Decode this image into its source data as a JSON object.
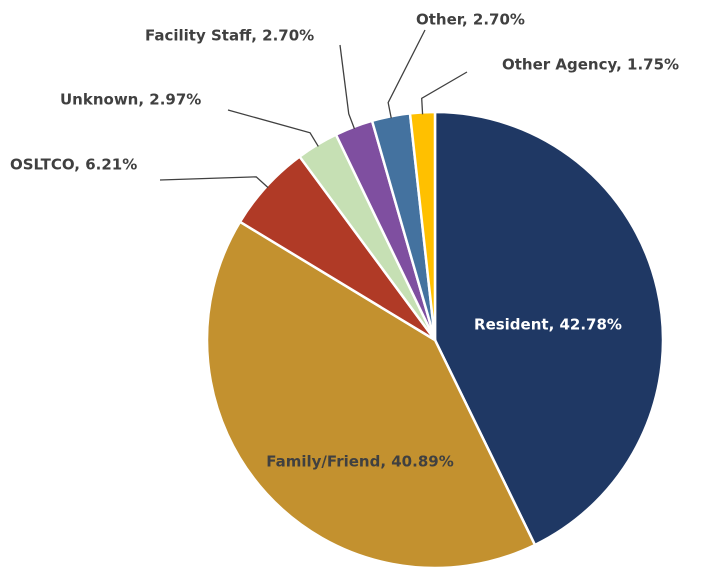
{
  "chart_data": {
    "type": "pie",
    "value_labels": [
      "Resident, 42.78%",
      "Family/Friend, 40.89%",
      "OSLTCO, 6.21%",
      "Unknown, 2.97%",
      "Facility Staff, 2.70%",
      "Other, 2.70%",
      "Other Agency, 1.75%"
    ],
    "values": [
      42.78,
      40.89,
      6.21,
      2.97,
      2.7,
      2.7,
      1.75
    ],
    "colors": [
      "#1f3864",
      "#c3912f",
      "#b03a26",
      "#c6e0b4",
      "#7f4fa0",
      "#44729f",
      "#ffc000"
    ]
  }
}
